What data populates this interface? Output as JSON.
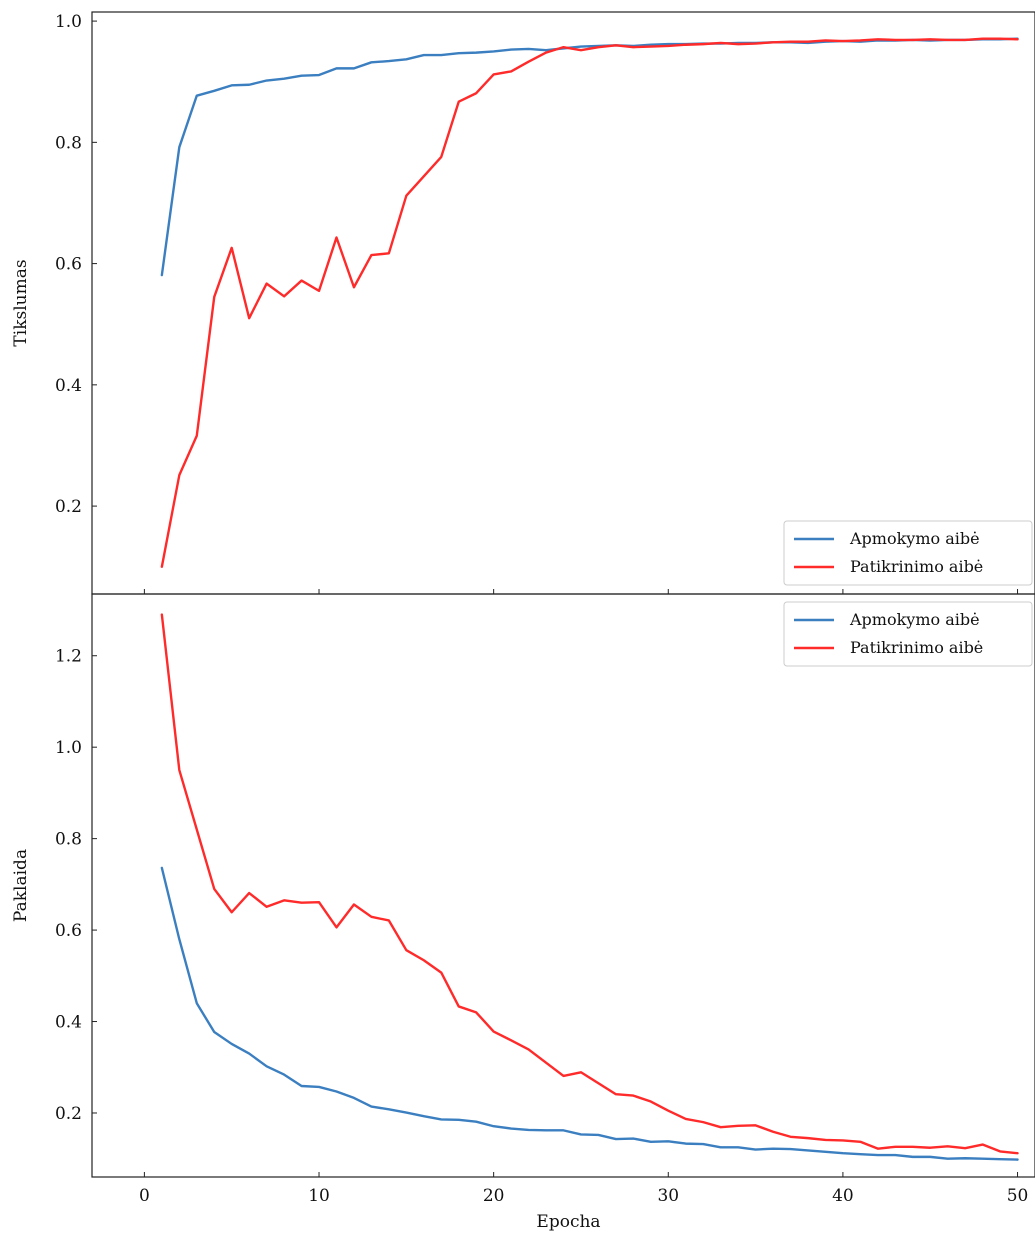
{
  "colors": {
    "train": "#3b7fc0",
    "validation": "#ff2a2a",
    "frame": "#222222",
    "legend_border": "#cccccc"
  },
  "chart_data": [
    {
      "type": "line",
      "title": "",
      "xlabel": "",
      "ylabel": "Tikslumas",
      "xlim": [
        -3,
        51
      ],
      "ylim": [
        0.055,
        1.015
      ],
      "xticks": [
        0,
        10,
        20,
        30,
        40,
        50
      ],
      "yticks": [
        0.2,
        0.4,
        0.6,
        0.8,
        1.0
      ],
      "ytick_labels": [
        "0.2",
        "0.4",
        "0.6",
        "0.8",
        "1.0"
      ],
      "legend_position": "lower right",
      "grid": false,
      "x": [
        1,
        2,
        3,
        4,
        5,
        6,
        7,
        8,
        9,
        10,
        11,
        12,
        13,
        14,
        15,
        16,
        17,
        18,
        19,
        20,
        21,
        22,
        23,
        24,
        25,
        26,
        27,
        28,
        29,
        30,
        31,
        32,
        33,
        34,
        35,
        36,
        37,
        38,
        39,
        40,
        41,
        42,
        43,
        44,
        45,
        46,
        47,
        48,
        49,
        50
      ],
      "series": [
        {
          "name": "Apmokymo aibė",
          "color_key": "train",
          "values": [
            0.581,
            0.792,
            0.877,
            0.885,
            0.894,
            0.895,
            0.902,
            0.905,
            0.91,
            0.911,
            0.922,
            0.922,
            0.932,
            0.934,
            0.937,
            0.944,
            0.944,
            0.947,
            0.948,
            0.95,
            0.953,
            0.954,
            0.952,
            0.955,
            0.958,
            0.959,
            0.96,
            0.959,
            0.961,
            0.962,
            0.962,
            0.963,
            0.963,
            0.964,
            0.964,
            0.965,
            0.965,
            0.964,
            0.966,
            0.967,
            0.966,
            0.968,
            0.968,
            0.969,
            0.968,
            0.969,
            0.969,
            0.97,
            0.97,
            0.971
          ]
        },
        {
          "name": "Patikrinimo aibė",
          "color_key": "validation",
          "values": [
            0.1,
            0.251,
            0.316,
            0.545,
            0.626,
            0.51,
            0.567,
            0.546,
            0.572,
            0.555,
            0.643,
            0.561,
            0.614,
            0.617,
            0.712,
            0.744,
            0.776,
            0.867,
            0.881,
            0.912,
            0.917,
            0.933,
            0.948,
            0.957,
            0.952,
            0.957,
            0.96,
            0.957,
            0.958,
            0.959,
            0.961,
            0.962,
            0.964,
            0.962,
            0.963,
            0.965,
            0.966,
            0.966,
            0.968,
            0.967,
            0.968,
            0.97,
            0.969,
            0.969,
            0.97,
            0.969,
            0.969,
            0.971,
            0.971,
            0.97
          ]
        }
      ]
    },
    {
      "type": "line",
      "title": "",
      "xlabel": "Epocha",
      "ylabel": "Paklaida",
      "xlim": [
        -3,
        51
      ],
      "ylim": [
        0.06,
        1.335
      ],
      "xticks": [
        0,
        10,
        20,
        30,
        40,
        50
      ],
      "xtick_labels": [
        "0",
        "10",
        "20",
        "30",
        "40",
        "50"
      ],
      "yticks": [
        0.2,
        0.4,
        0.6,
        0.8,
        1.0,
        1.2
      ],
      "ytick_labels": [
        "0.2",
        "0.4",
        "0.6",
        "0.8",
        "1.0",
        "1.2"
      ],
      "legend_position": "upper right",
      "grid": false,
      "x": [
        1,
        2,
        3,
        4,
        5,
        6,
        7,
        8,
        9,
        10,
        11,
        12,
        13,
        14,
        15,
        16,
        17,
        18,
        19,
        20,
        21,
        22,
        23,
        24,
        25,
        26,
        27,
        28,
        29,
        30,
        31,
        32,
        33,
        34,
        35,
        36,
        37,
        38,
        39,
        40,
        41,
        42,
        43,
        44,
        45,
        46,
        47,
        48,
        49,
        50
      ],
      "series": [
        {
          "name": "Apmokymo aibė",
          "color_key": "train",
          "values": [
            0.736,
            0.58,
            0.44,
            0.377,
            0.351,
            0.33,
            0.302,
            0.284,
            0.259,
            0.257,
            0.247,
            0.233,
            0.214,
            0.208,
            0.201,
            0.193,
            0.186,
            0.185,
            0.181,
            0.171,
            0.166,
            0.163,
            0.162,
            0.162,
            0.153,
            0.152,
            0.143,
            0.144,
            0.137,
            0.138,
            0.133,
            0.132,
            0.125,
            0.125,
            0.12,
            0.122,
            0.121,
            0.118,
            0.115,
            0.112,
            0.11,
            0.108,
            0.108,
            0.104,
            0.104,
            0.1,
            0.101,
            0.1,
            0.099,
            0.098
          ]
        },
        {
          "name": "Patikrinimo aibė",
          "color_key": "validation",
          "values": [
            1.29,
            0.95,
            0.82,
            0.69,
            0.639,
            0.681,
            0.651,
            0.665,
            0.66,
            0.661,
            0.606,
            0.656,
            0.629,
            0.621,
            0.556,
            0.534,
            0.507,
            0.433,
            0.42,
            0.378,
            0.359,
            0.339,
            0.31,
            0.281,
            0.289,
            0.265,
            0.241,
            0.238,
            0.225,
            0.205,
            0.187,
            0.18,
            0.169,
            0.172,
            0.173,
            0.159,
            0.148,
            0.145,
            0.141,
            0.14,
            0.137,
            0.122,
            0.126,
            0.126,
            0.124,
            0.127,
            0.123,
            0.131,
            0.116,
            0.112
          ]
        }
      ]
    }
  ]
}
